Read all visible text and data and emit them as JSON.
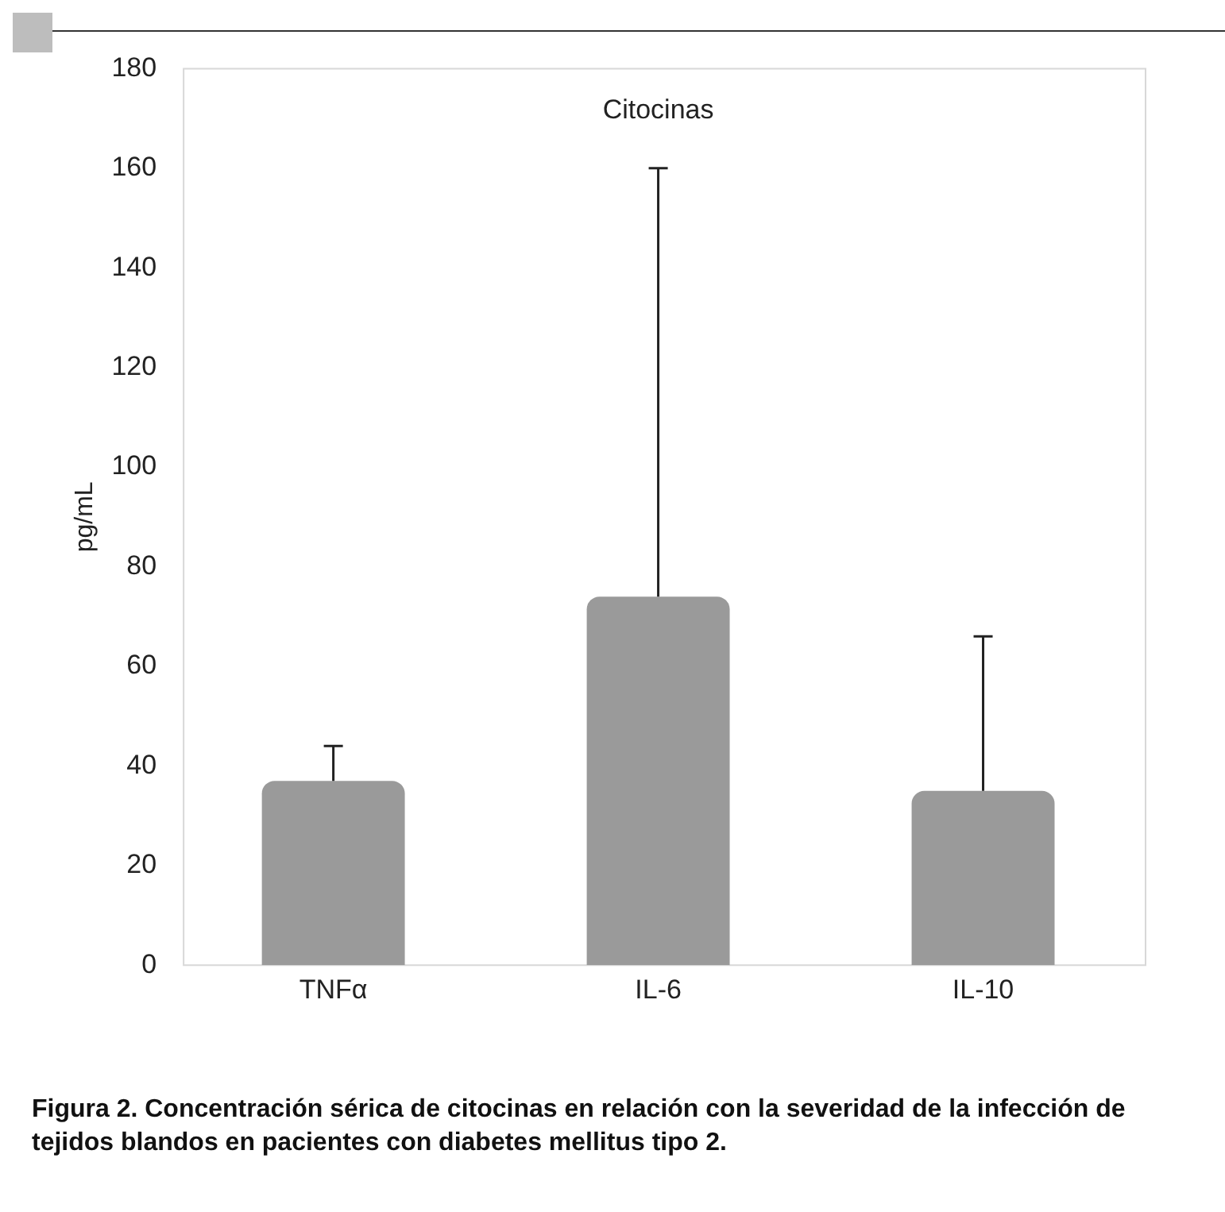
{
  "chart_data": {
    "type": "bar",
    "title": "Citocinas",
    "ylabel": "pg/mL",
    "categories": [
      "TNFα",
      "IL-6",
      "IL-10"
    ],
    "values": [
      37,
      74,
      35
    ],
    "color": "#9a9a9a",
    "errors": [
      [
        37,
        44
      ],
      [
        74,
        160
      ],
      [
        35,
        66
      ]
    ],
    "ylim": [
      0,
      180
    ],
    "yticks": [
      0,
      20,
      40,
      60,
      80,
      100,
      120,
      140,
      160,
      180
    ],
    "grid": false,
    "annotations": [
      "Figura 2. Concentración sérica de citocinas en relación con la severidad de la infección de tejidos blandos en pacientes con diabetes mellitus tipo 2."
    ]
  }
}
